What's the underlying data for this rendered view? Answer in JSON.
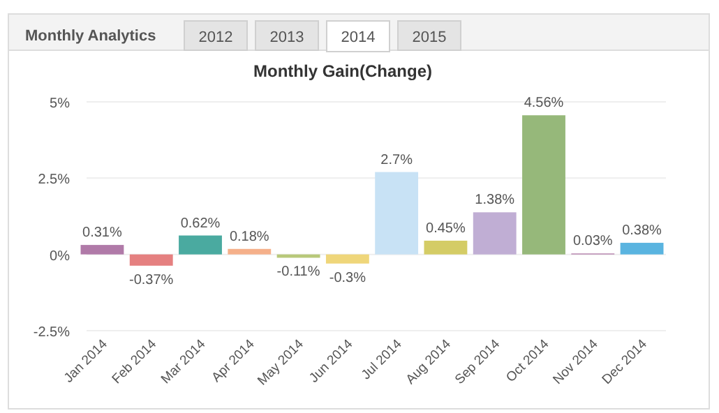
{
  "chart_data": {
    "type": "bar",
    "title": "Monthly Gain(Change)",
    "annotations": [
      "Monthly Analytics",
      "2012",
      "2013",
      "2014",
      "2015"
    ],
    "categories": [
      "Jan 2014",
      "Feb 2014",
      "Mar 2014",
      "Apr 2014",
      "May 2014",
      "Jun 2014",
      "Jul 2014",
      "Aug 2014",
      "Sep 2014",
      "Oct 2014",
      "Nov 2014",
      "Dec 2014"
    ],
    "values": [
      0.31,
      -0.37,
      0.62,
      0.18,
      -0.11,
      -0.3,
      2.7,
      0.45,
      1.38,
      4.56,
      0.03,
      0.38
    ],
    "value_labels": [
      "0.31%",
      "-0.37%",
      "0.62%",
      "0.18%",
      "-0.11%",
      "-0.3%",
      "2.7%",
      "0.45%",
      "1.38%",
      "4.56%",
      "0.03%",
      "0.38%"
    ],
    "colors": [
      "#b07aa8",
      "#e58080",
      "#4aaaa0",
      "#f5b08a",
      "#b8c87a",
      "#efd67a",
      "#c8e2f5",
      "#d4cc66",
      "#c0aed4",
      "#96b87a",
      "#b07aa8",
      "#5ab4e0"
    ],
    "ylim": [
      -2.5,
      5
    ],
    "yticks": [
      {
        "value": -2.5,
        "label": "-2.5%"
      },
      {
        "value": 0,
        "label": "0%"
      },
      {
        "value": 2.5,
        "label": "2.5%"
      },
      {
        "value": 5,
        "label": "5%"
      }
    ],
    "grid": "y"
  }
}
